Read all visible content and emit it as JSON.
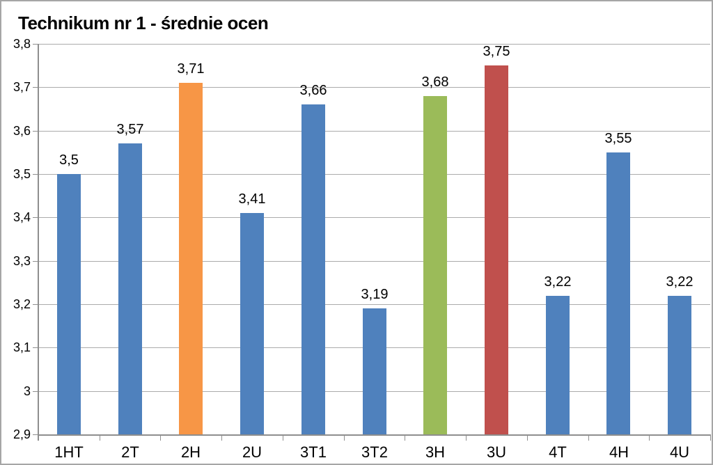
{
  "chart_data": {
    "type": "bar",
    "title": "Technikum nr 1 - średnie ocen",
    "categories": [
      "1HT",
      "2T",
      "2H",
      "2U",
      "3T1",
      "3T2",
      "3H",
      "3U",
      "4T",
      "4H",
      "4U"
    ],
    "values": [
      3.5,
      3.57,
      3.71,
      3.41,
      3.66,
      3.19,
      3.68,
      3.75,
      3.22,
      3.55,
      3.22
    ],
    "value_labels": [
      "3,5",
      "3,57",
      "3,71",
      "3,41",
      "3,66",
      "3,19",
      "3,68",
      "3,75",
      "3,22",
      "3,55",
      "3,22"
    ],
    "bar_colors": [
      "#4F81BD",
      "#4F81BD",
      "#F79646",
      "#4F81BD",
      "#4F81BD",
      "#4F81BD",
      "#9BBB59",
      "#C0504D",
      "#4F81BD",
      "#4F81BD",
      "#4F81BD"
    ],
    "xlabel": "",
    "ylabel": "",
    "ylim": [
      2.9,
      3.8
    ],
    "ytick_step": 0.1,
    "ytick_labels": [
      "3,8",
      "3,7",
      "3,6",
      "3,5",
      "3,4",
      "3,3",
      "3,2",
      "3,1",
      "3",
      "2,9"
    ],
    "grid": true,
    "legend": "none",
    "data_labels": "outside-end"
  },
  "colors": {
    "default_bar": "#4F81BD",
    "highlight_orange": "#F79646",
    "highlight_green": "#9BBB59",
    "highlight_red": "#C0504D",
    "gridline": "#ABABAB",
    "axis": "#8E8E8E",
    "text": "#000000",
    "background": "#FFFFFF",
    "frame_border": "#A6A6A6"
  }
}
